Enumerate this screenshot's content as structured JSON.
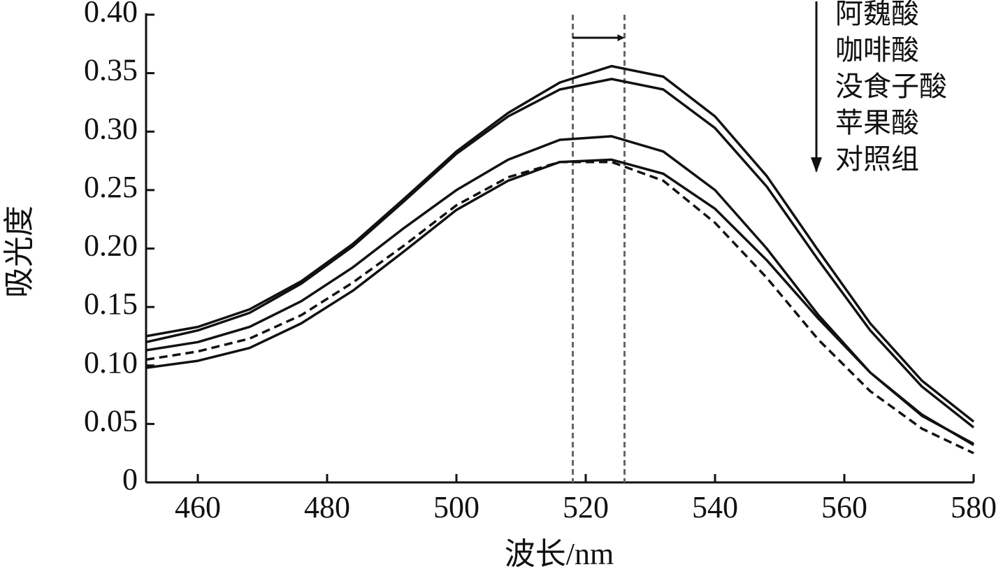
{
  "chart_data": {
    "type": "line",
    "x_label": "波长/nm",
    "y_label": "吸光度",
    "x": [
      452,
      460,
      468,
      476,
      484,
      492,
      500,
      508,
      516,
      524,
      532,
      540,
      548,
      556,
      564,
      572,
      580
    ],
    "series": [
      {
        "name": "阿魏酸",
        "color": "#111111",
        "dash": false,
        "values": [
          0.125,
          0.133,
          0.148,
          0.172,
          0.204,
          0.243,
          0.283,
          0.316,
          0.342,
          0.356,
          0.347,
          0.313,
          0.262,
          0.198,
          0.136,
          0.087,
          0.052
        ]
      },
      {
        "name": "咖啡酸",
        "color": "#111111",
        "dash": false,
        "values": [
          0.12,
          0.13,
          0.145,
          0.17,
          0.202,
          0.241,
          0.281,
          0.313,
          0.336,
          0.345,
          0.336,
          0.303,
          0.253,
          0.19,
          0.13,
          0.082,
          0.047
        ]
      },
      {
        "name": "没食子酸",
        "color": "#111111",
        "dash": false,
        "values": [
          0.113,
          0.12,
          0.133,
          0.155,
          0.184,
          0.218,
          0.25,
          0.276,
          0.293,
          0.296,
          0.283,
          0.25,
          0.2,
          0.143,
          0.094,
          0.057,
          0.033
        ]
      },
      {
        "name": "苹果酸",
        "color": "#111111",
        "dash": false,
        "values": [
          0.098,
          0.104,
          0.115,
          0.136,
          0.164,
          0.198,
          0.233,
          0.258,
          0.274,
          0.276,
          0.264,
          0.234,
          0.19,
          0.14,
          0.094,
          0.058,
          0.032
        ]
      },
      {
        "name": "对照组",
        "color": "#111111",
        "dash": true,
        "values": [
          0.105,
          0.112,
          0.123,
          0.143,
          0.171,
          0.203,
          0.237,
          0.261,
          0.274,
          0.274,
          0.258,
          0.222,
          0.175,
          0.122,
          0.078,
          0.046,
          0.025
        ]
      }
    ],
    "reference_lines": [
      518,
      526
    ],
    "xlim": [
      452,
      580
    ],
    "ylim": [
      0,
      0.4
    ],
    "xticks": [
      460,
      480,
      500,
      520,
      540,
      560,
      580
    ],
    "yticks": [
      0,
      0.05,
      {
        "value": 0.1,
        "label": "0.10"
      },
      0.15,
      {
        "value": 0.2,
        "label": "0.20"
      },
      0.25,
      {
        "value": 0.3,
        "label": "0.30"
      },
      0.35,
      {
        "value": 0.4,
        "label": "0.40"
      }
    ],
    "grid": false
  }
}
